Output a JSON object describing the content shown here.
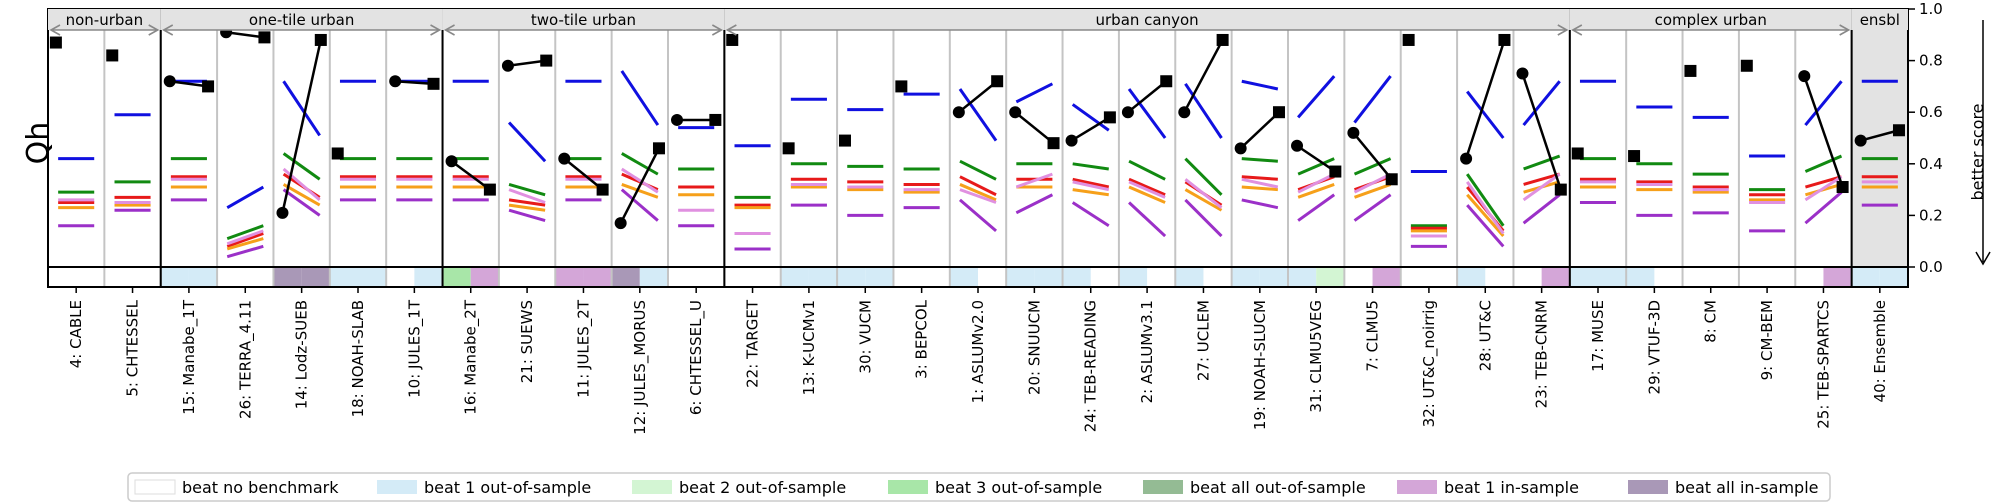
{
  "chart_data": {
    "type": "line",
    "ylabel": "Qh",
    "right_label": "better score",
    "ylim": [
      0,
      1
    ],
    "yticks": [
      "0.0",
      "0.2",
      "0.4",
      "0.6",
      "0.8",
      "1.0"
    ],
    "groups": [
      {
        "label": "non-urban",
        "start": 0,
        "end": 2
      },
      {
        "label": "one-tile urban",
        "start": 2,
        "end": 7
      },
      {
        "label": "two-tile urban",
        "start": 7,
        "end": 12
      },
      {
        "label": "urban canyon",
        "start": 12,
        "end": 27
      },
      {
        "label": "complex urban",
        "start": 27,
        "end": 32
      },
      {
        "label": "ensbl",
        "start": 32,
        "end": 33
      }
    ],
    "categories": [
      "4: CABLE",
      "5: CHTESSEL",
      "15: Manabe_1T",
      "26: TERRA_4.11",
      "14: Lodz-SUEB",
      "18: NOAH-SLAB",
      "10: JULES_1T",
      "16: Manabe_2T",
      "21: SUEWS",
      "11: JULES_2T",
      "12: JULES_MORUS",
      "6: CHTESSEL_U",
      "22: TARGET",
      "13: K-UCMv1",
      "30: VUCM",
      "3: BEPCOL",
      "1: ASLUMv2.0",
      "20: SNUUCM",
      "24: TEB-READING",
      "2: ASLUMv3.1",
      "27: UCLEM",
      "19: NOAH-SLUCM",
      "31: CLMU5VEG",
      "7: CLMU5",
      "32: UT&C_noirrig",
      "28: UT&C",
      "23: TEB-CNRM",
      "17: MUSE",
      "29: VTUF-3D",
      "8: CM",
      "9: CM-BEM",
      "25: TEB-SPARTCS",
      "40: Ensemble"
    ],
    "series": [
      {
        "color": "#1010e0",
        "values": [
          [
            0.42,
            0.42
          ],
          [
            0.59,
            0.59
          ],
          [
            0.72,
            0.72
          ],
          [
            0.23,
            0.31
          ],
          [
            0.72,
            0.51
          ],
          [
            0.72,
            0.72
          ],
          [
            0.72,
            0.72
          ],
          [
            0.72,
            0.72
          ],
          [
            0.56,
            0.41
          ],
          [
            0.72,
            0.72
          ],
          [
            0.76,
            0.55
          ],
          [
            0.54,
            0.54
          ],
          [
            0.47,
            0.47
          ],
          [
            0.65,
            0.65
          ],
          [
            0.61,
            0.61
          ],
          [
            0.67,
            0.67
          ],
          [
            0.69,
            0.49
          ],
          [
            0.64,
            0.71
          ],
          [
            0.63,
            0.53
          ],
          [
            0.69,
            0.5
          ],
          [
            0.71,
            0.5
          ],
          [
            0.72,
            0.69
          ],
          [
            0.58,
            0.74
          ],
          [
            0.56,
            0.74
          ],
          [
            0.37,
            0.37
          ],
          [
            0.68,
            0.5
          ],
          [
            0.55,
            0.72
          ],
          [
            0.72,
            0.72
          ],
          [
            0.62,
            0.62
          ],
          [
            0.58,
            0.58
          ],
          [
            0.43,
            0.43
          ],
          [
            0.55,
            0.72
          ],
          [
            0.72,
            0.72
          ]
        ]
      },
      {
        "color": "#118a11",
        "values": [
          [
            0.29,
            0.29
          ],
          [
            0.33,
            0.33
          ],
          [
            0.42,
            0.42
          ],
          [
            0.11,
            0.16
          ],
          [
            0.44,
            0.34
          ],
          [
            0.42,
            0.42
          ],
          [
            0.42,
            0.42
          ],
          [
            0.42,
            0.42
          ],
          [
            0.32,
            0.28
          ],
          [
            0.42,
            0.42
          ],
          [
            0.44,
            0.36
          ],
          [
            0.38,
            0.38
          ],
          [
            0.27,
            0.27
          ],
          [
            0.4,
            0.4
          ],
          [
            0.39,
            0.39
          ],
          [
            0.38,
            0.38
          ],
          [
            0.41,
            0.34
          ],
          [
            0.4,
            0.4
          ],
          [
            0.4,
            0.38
          ],
          [
            0.41,
            0.34
          ],
          [
            0.42,
            0.28
          ],
          [
            0.42,
            0.41
          ],
          [
            0.36,
            0.42
          ],
          [
            0.36,
            0.42
          ],
          [
            0.16,
            0.16
          ],
          [
            0.36,
            0.16
          ],
          [
            0.38,
            0.43
          ],
          [
            0.42,
            0.42
          ],
          [
            0.4,
            0.4
          ],
          [
            0.36,
            0.36
          ],
          [
            0.3,
            0.3
          ],
          [
            0.37,
            0.43
          ],
          [
            0.42,
            0.42
          ]
        ]
      },
      {
        "color": "#e71a1a",
        "values": [
          [
            0.25,
            0.25
          ],
          [
            0.27,
            0.27
          ],
          [
            0.35,
            0.35
          ],
          [
            0.08,
            0.13
          ],
          [
            0.36,
            0.27
          ],
          [
            0.35,
            0.35
          ],
          [
            0.35,
            0.35
          ],
          [
            0.35,
            0.35
          ],
          [
            0.26,
            0.24
          ],
          [
            0.35,
            0.35
          ],
          [
            0.36,
            0.3
          ],
          [
            0.31,
            0.31
          ],
          [
            0.24,
            0.24
          ],
          [
            0.34,
            0.34
          ],
          [
            0.33,
            0.33
          ],
          [
            0.32,
            0.32
          ],
          [
            0.35,
            0.28
          ],
          [
            0.34,
            0.34
          ],
          [
            0.34,
            0.31
          ],
          [
            0.34,
            0.28
          ],
          [
            0.33,
            0.24
          ],
          [
            0.35,
            0.34
          ],
          [
            0.3,
            0.35
          ],
          [
            0.3,
            0.35
          ],
          [
            0.15,
            0.15
          ],
          [
            0.31,
            0.14
          ],
          [
            0.32,
            0.36
          ],
          [
            0.34,
            0.34
          ],
          [
            0.33,
            0.33
          ],
          [
            0.31,
            0.31
          ],
          [
            0.28,
            0.28
          ],
          [
            0.31,
            0.35
          ],
          [
            0.35,
            0.35
          ]
        ]
      },
      {
        "color": "#f6a01a",
        "values": [
          [
            0.23,
            0.23
          ],
          [
            0.24,
            0.24
          ],
          [
            0.31,
            0.31
          ],
          [
            0.07,
            0.11
          ],
          [
            0.32,
            0.24
          ],
          [
            0.31,
            0.31
          ],
          [
            0.31,
            0.31
          ],
          [
            0.31,
            0.31
          ],
          [
            0.24,
            0.22
          ],
          [
            0.31,
            0.31
          ],
          [
            0.32,
            0.27
          ],
          [
            0.28,
            0.28
          ],
          [
            0.23,
            0.23
          ],
          [
            0.31,
            0.31
          ],
          [
            0.3,
            0.3
          ],
          [
            0.29,
            0.29
          ],
          [
            0.32,
            0.26
          ],
          [
            0.31,
            0.31
          ],
          [
            0.3,
            0.28
          ],
          [
            0.31,
            0.25
          ],
          [
            0.3,
            0.22
          ],
          [
            0.31,
            0.3
          ],
          [
            0.27,
            0.32
          ],
          [
            0.27,
            0.32
          ],
          [
            0.14,
            0.14
          ],
          [
            0.28,
            0.12
          ],
          [
            0.29,
            0.33
          ],
          [
            0.31,
            0.31
          ],
          [
            0.3,
            0.3
          ],
          [
            0.29,
            0.29
          ],
          [
            0.26,
            0.26
          ],
          [
            0.28,
            0.32
          ],
          [
            0.31,
            0.31
          ]
        ]
      },
      {
        "color": "#e090e0",
        "values": [
          [
            0.26,
            0.26
          ],
          [
            0.25,
            0.25
          ],
          [
            0.34,
            0.34
          ],
          [
            0.09,
            0.14
          ],
          [
            0.38,
            0.26
          ],
          [
            0.34,
            0.34
          ],
          [
            0.34,
            0.34
          ],
          [
            0.34,
            0.34
          ],
          [
            0.3,
            0.25
          ],
          [
            0.34,
            0.34
          ],
          [
            0.38,
            0.29
          ],
          [
            0.22,
            0.22
          ],
          [
            0.13,
            0.13
          ],
          [
            0.32,
            0.32
          ],
          [
            0.31,
            0.31
          ],
          [
            0.3,
            0.3
          ],
          [
            0.3,
            0.25
          ],
          [
            0.31,
            0.36
          ],
          [
            0.33,
            0.3
          ],
          [
            0.33,
            0.27
          ],
          [
            0.34,
            0.23
          ],
          [
            0.34,
            0.31
          ],
          [
            0.29,
            0.36
          ],
          [
            0.29,
            0.36
          ],
          [
            0.12,
            0.12
          ],
          [
            0.33,
            0.13
          ],
          [
            0.26,
            0.36
          ],
          [
            0.33,
            0.33
          ],
          [
            0.32,
            0.32
          ],
          [
            0.3,
            0.3
          ],
          [
            0.25,
            0.25
          ],
          [
            0.26,
            0.35
          ],
          [
            0.33,
            0.33
          ]
        ]
      },
      {
        "color": "#9b30c8",
        "values": [
          [
            0.16,
            0.16
          ],
          [
            0.22,
            0.22
          ],
          [
            0.26,
            0.26
          ],
          [
            0.04,
            0.08
          ],
          [
            0.3,
            0.2
          ],
          [
            0.26,
            0.26
          ],
          [
            0.26,
            0.26
          ],
          [
            0.26,
            0.26
          ],
          [
            0.22,
            0.18
          ],
          [
            0.26,
            0.26
          ],
          [
            0.3,
            0.18
          ],
          [
            0.16,
            0.16
          ],
          [
            0.07,
            0.07
          ],
          [
            0.24,
            0.24
          ],
          [
            0.2,
            0.2
          ],
          [
            0.23,
            0.23
          ],
          [
            0.26,
            0.14
          ],
          [
            0.21,
            0.28
          ],
          [
            0.25,
            0.16
          ],
          [
            0.25,
            0.12
          ],
          [
            0.26,
            0.12
          ],
          [
            0.26,
            0.23
          ],
          [
            0.18,
            0.28
          ],
          [
            0.18,
            0.28
          ],
          [
            0.08,
            0.08
          ],
          [
            0.24,
            0.08
          ],
          [
            0.17,
            0.28
          ],
          [
            0.25,
            0.25
          ],
          [
            0.2,
            0.2
          ],
          [
            0.21,
            0.21
          ],
          [
            0.14,
            0.14
          ],
          [
            0.17,
            0.29
          ],
          [
            0.24,
            0.24
          ]
        ]
      }
    ],
    "bench": [
      {
        "c": [
          0.87
        ]
      },
      {
        "c": [
          0.82
        ]
      },
      {
        "c": [
          0.72,
          0.7
        ]
      },
      {
        "c": [
          0.91,
          0.89
        ]
      },
      {
        "c": [
          0.21,
          0.88
        ]
      },
      {
        "c": [
          0.44
        ]
      },
      {
        "c": [
          0.72,
          0.71
        ]
      },
      {
        "c": [
          0.41,
          0.3
        ]
      },
      {
        "c": [
          0.78,
          0.8
        ]
      },
      {
        "c": [
          0.42,
          0.3
        ]
      },
      {
        "c": [
          0.17,
          0.46
        ]
      },
      {
        "c": [
          0.57,
          0.57
        ]
      },
      {
        "c": [
          0.88
        ]
      },
      {
        "c": [
          0.46
        ]
      },
      {
        "c": [
          0.49
        ]
      },
      {
        "c": [
          0.7
        ]
      },
      {
        "c": [
          0.6,
          0.72
        ]
      },
      {
        "c": [
          0.6,
          0.48
        ]
      },
      {
        "c": [
          0.49,
          0.58
        ]
      },
      {
        "c": [
          0.6,
          0.72
        ]
      },
      {
        "c": [
          0.6,
          0.88
        ]
      },
      {
        "c": [
          0.46,
          0.6
        ]
      },
      {
        "c": [
          0.47,
          0.37
        ]
      },
      {
        "c": [
          0.52,
          0.34
        ]
      },
      {
        "c": [
          0.88
        ]
      },
      {
        "c": [
          0.42,
          0.88
        ]
      },
      {
        "c": [
          0.75,
          0.3
        ]
      },
      {
        "c": [
          0.44
        ]
      },
      {
        "c": [
          0.43
        ]
      },
      {
        "c": [
          0.76
        ]
      },
      {
        "c": [
          0.78
        ]
      },
      {
        "c": [
          0.74,
          0.31
        ]
      },
      {
        "c": [
          0.49,
          0.53
        ]
      }
    ],
    "strip": [
      [
        "none"
      ],
      [
        "none"
      ],
      [
        "b1o",
        "b1o"
      ],
      [
        "none",
        "none"
      ],
      [
        "ball_in",
        "ball_in"
      ],
      [
        "b1o",
        "b1o"
      ],
      [
        "none",
        "b1o"
      ],
      [
        "b3o",
        "b1i"
      ],
      [
        "none",
        "none"
      ],
      [
        "b1i",
        "b1i"
      ],
      [
        "ball_in",
        "b1o"
      ],
      [
        "none",
        "none"
      ],
      [
        "none"
      ],
      [
        "b1o",
        "b1o"
      ],
      [
        "b1o",
        "b1o"
      ],
      [
        "none",
        "none"
      ],
      [
        "b1o",
        "none"
      ],
      [
        "b1o",
        "b1o"
      ],
      [
        "b1o",
        "none"
      ],
      [
        "b1o",
        "none"
      ],
      [
        "b1o",
        "none"
      ],
      [
        "b1o",
        "b1o"
      ],
      [
        "b1o",
        "b2o"
      ],
      [
        "none",
        "b1i"
      ],
      [
        "none"
      ],
      [
        "b1o",
        "none"
      ],
      [
        "none",
        "b1i"
      ],
      [
        "b1o",
        "b1o"
      ],
      [
        "b1o",
        "none"
      ],
      [
        "none",
        "none"
      ],
      [
        "none",
        "none"
      ],
      [
        "none",
        "b1i"
      ],
      [
        "b1o",
        "b1o"
      ]
    ],
    "legend": [
      {
        "key": "none",
        "label": "beat no benchmark",
        "color": "#ffffff"
      },
      {
        "key": "b1o",
        "label": "beat 1 out-of-sample",
        "color": "#d4ebf7"
      },
      {
        "key": "b2o",
        "label": "beat 2 out-of-sample",
        "color": "#d3f5d3"
      },
      {
        "key": "b3o",
        "label": "beat 3 out-of-sample",
        "color": "#a8e6a8"
      },
      {
        "key": "ball_out",
        "label": "beat all out-of-sample",
        "color": "#94bb94"
      },
      {
        "key": "b1i",
        "label": "beat 1 in-sample",
        "color": "#d4a6d8"
      },
      {
        "key": "ball_in",
        "label": "beat all in-sample",
        "color": "#a998b7"
      }
    ],
    "ensemble_bg": "#e3e3e3"
  }
}
